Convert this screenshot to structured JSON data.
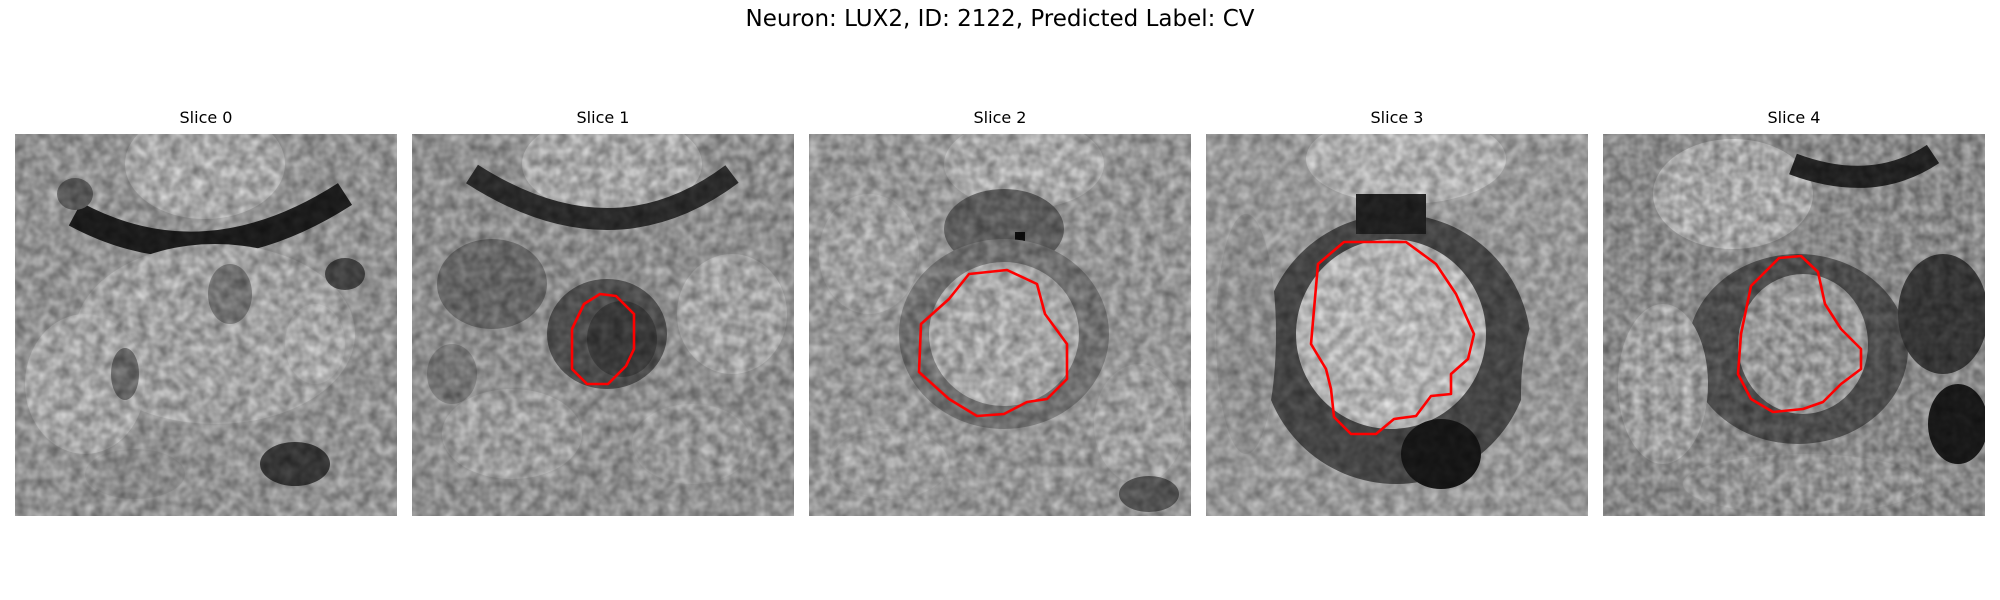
{
  "figure": {
    "title": "Neuron: LUX2, ID: 2122, Predicted Label: CV"
  },
  "panels": [
    {
      "title": "Slice 0",
      "has_contour": false,
      "image": "grayscale-em-slice"
    },
    {
      "title": "Slice 1",
      "has_contour": true,
      "image": "grayscale-em-slice"
    },
    {
      "title": "Slice 2",
      "has_contour": true,
      "image": "grayscale-em-slice"
    },
    {
      "title": "Slice 3",
      "has_contour": true,
      "image": "grayscale-em-slice"
    },
    {
      "title": "Slice 4",
      "has_contour": true,
      "image": "grayscale-em-slice"
    }
  ],
  "colors": {
    "contour": "#ff0000",
    "background": "#ffffff"
  }
}
